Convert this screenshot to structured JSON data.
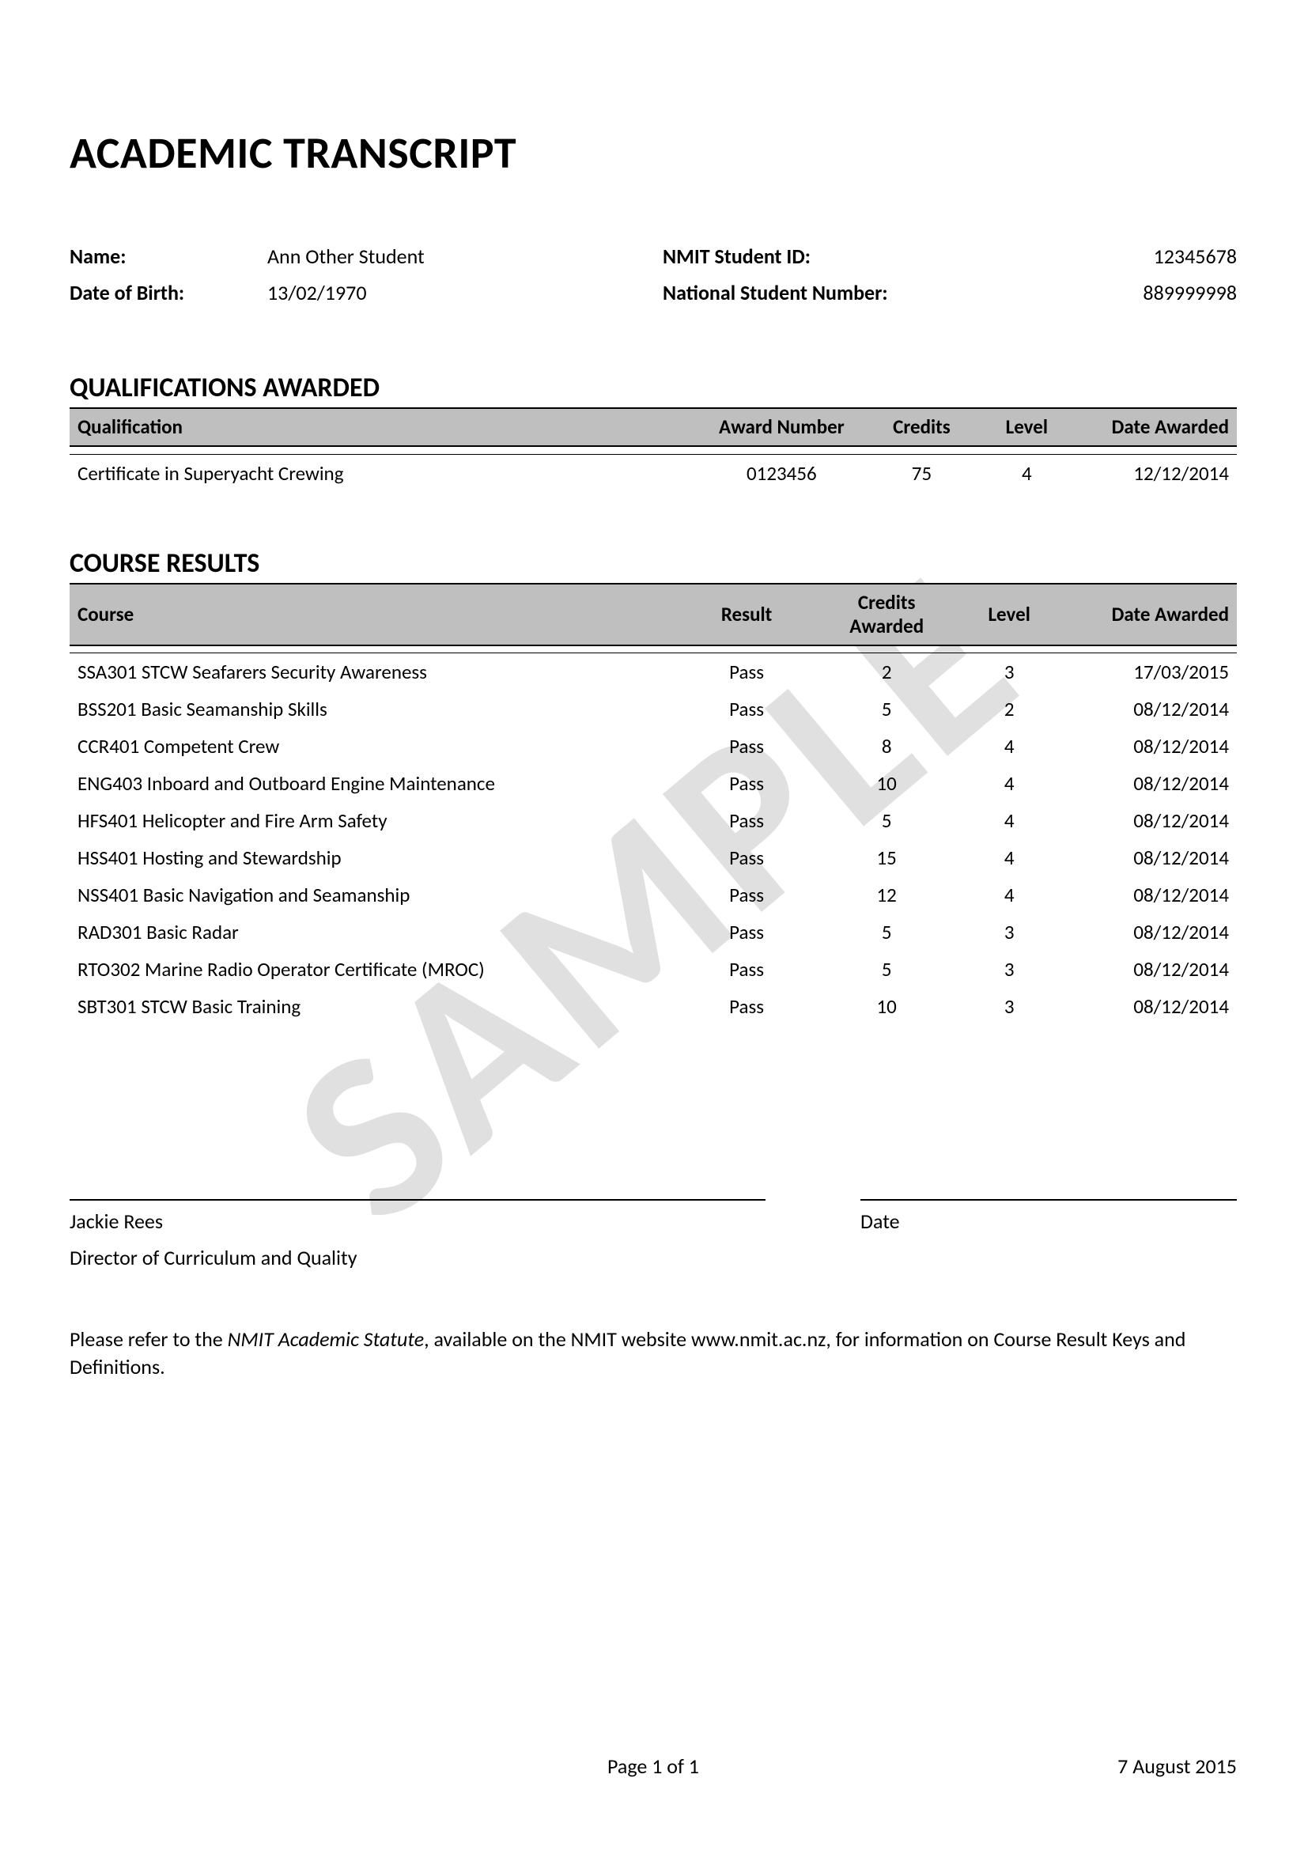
{
  "watermark": "SAMPLE",
  "title": "ACADEMIC TRANSCRIPT",
  "student": {
    "name_label": "Name:",
    "name": "Ann Other Student",
    "dob_label": "Date of Birth:",
    "dob": "13/02/1970",
    "id_label": "NMIT Student ID:",
    "id": "12345678",
    "nsn_label": "National Student Number:",
    "nsn": "889999998"
  },
  "qualifications": {
    "heading": "QUALIFICATIONS AWARDED",
    "columns": {
      "qualification": "Qualification",
      "award_number": "Award Number",
      "credits": "Credits",
      "level": "Level",
      "date_awarded": "Date Awarded"
    },
    "rows": [
      {
        "qualification": "Certificate in Superyacht Crewing",
        "award_number": "0123456",
        "credits": "75",
        "level": "4",
        "date_awarded": "12/12/2014"
      }
    ]
  },
  "courses": {
    "heading": "COURSE RESULTS",
    "columns": {
      "course": "Course",
      "result": "Result",
      "credits_awarded": "Credits Awarded",
      "level": "Level",
      "date_awarded": "Date Awarded"
    },
    "rows": [
      {
        "course": "SSA301 STCW Seafarers Security Awareness",
        "result": "Pass",
        "credits": "2",
        "level": "3",
        "date": "17/03/2015"
      },
      {
        "course": "BSS201 Basic Seamanship Skills",
        "result": "Pass",
        "credits": "5",
        "level": "2",
        "date": "08/12/2014"
      },
      {
        "course": "CCR401 Competent Crew",
        "result": "Pass",
        "credits": "8",
        "level": "4",
        "date": "08/12/2014"
      },
      {
        "course": "ENG403 Inboard and Outboard Engine Maintenance",
        "result": "Pass",
        "credits": "10",
        "level": "4",
        "date": "08/12/2014"
      },
      {
        "course": "HFS401 Helicopter and Fire Arm Safety",
        "result": "Pass",
        "credits": "5",
        "level": "4",
        "date": "08/12/2014"
      },
      {
        "course": "HSS401 Hosting and Stewardship",
        "result": "Pass",
        "credits": "15",
        "level": "4",
        "date": "08/12/2014"
      },
      {
        "course": "NSS401 Basic Navigation and Seamanship",
        "result": "Pass",
        "credits": "12",
        "level": "4",
        "date": "08/12/2014"
      },
      {
        "course": "RAD301 Basic Radar",
        "result": "Pass",
        "credits": "5",
        "level": "3",
        "date": "08/12/2014"
      },
      {
        "course": "RTO302 Marine Radio Operator Certificate (MROC)",
        "result": "Pass",
        "credits": "5",
        "level": "3",
        "date": "08/12/2014"
      },
      {
        "course": "SBT301 STCW Basic Training",
        "result": "Pass",
        "credits": "10",
        "level": "3",
        "date": "08/12/2014"
      }
    ]
  },
  "signature": {
    "name": "Jackie Rees",
    "role": "Director of Curriculum and Quality",
    "date_label": "Date"
  },
  "footnote": {
    "pre": "Please refer to the ",
    "italic": "NMIT Academic Statute",
    "post": ", available on the NMIT website www.nmit.ac.nz, for information on Course Result Keys and Definitions."
  },
  "footer": {
    "page": "Page 1 of 1",
    "date": "7 August 2015"
  },
  "colors": {
    "header_bg": "#bfbfbf",
    "text": "#000000",
    "border": "#000000",
    "watermark": "rgba(0,0,0,0.12)"
  },
  "typography": {
    "title_fontsize_pt": 42,
    "section_fontsize_pt": 26,
    "body_fontsize_pt": 19,
    "font_family": "Calibri"
  }
}
